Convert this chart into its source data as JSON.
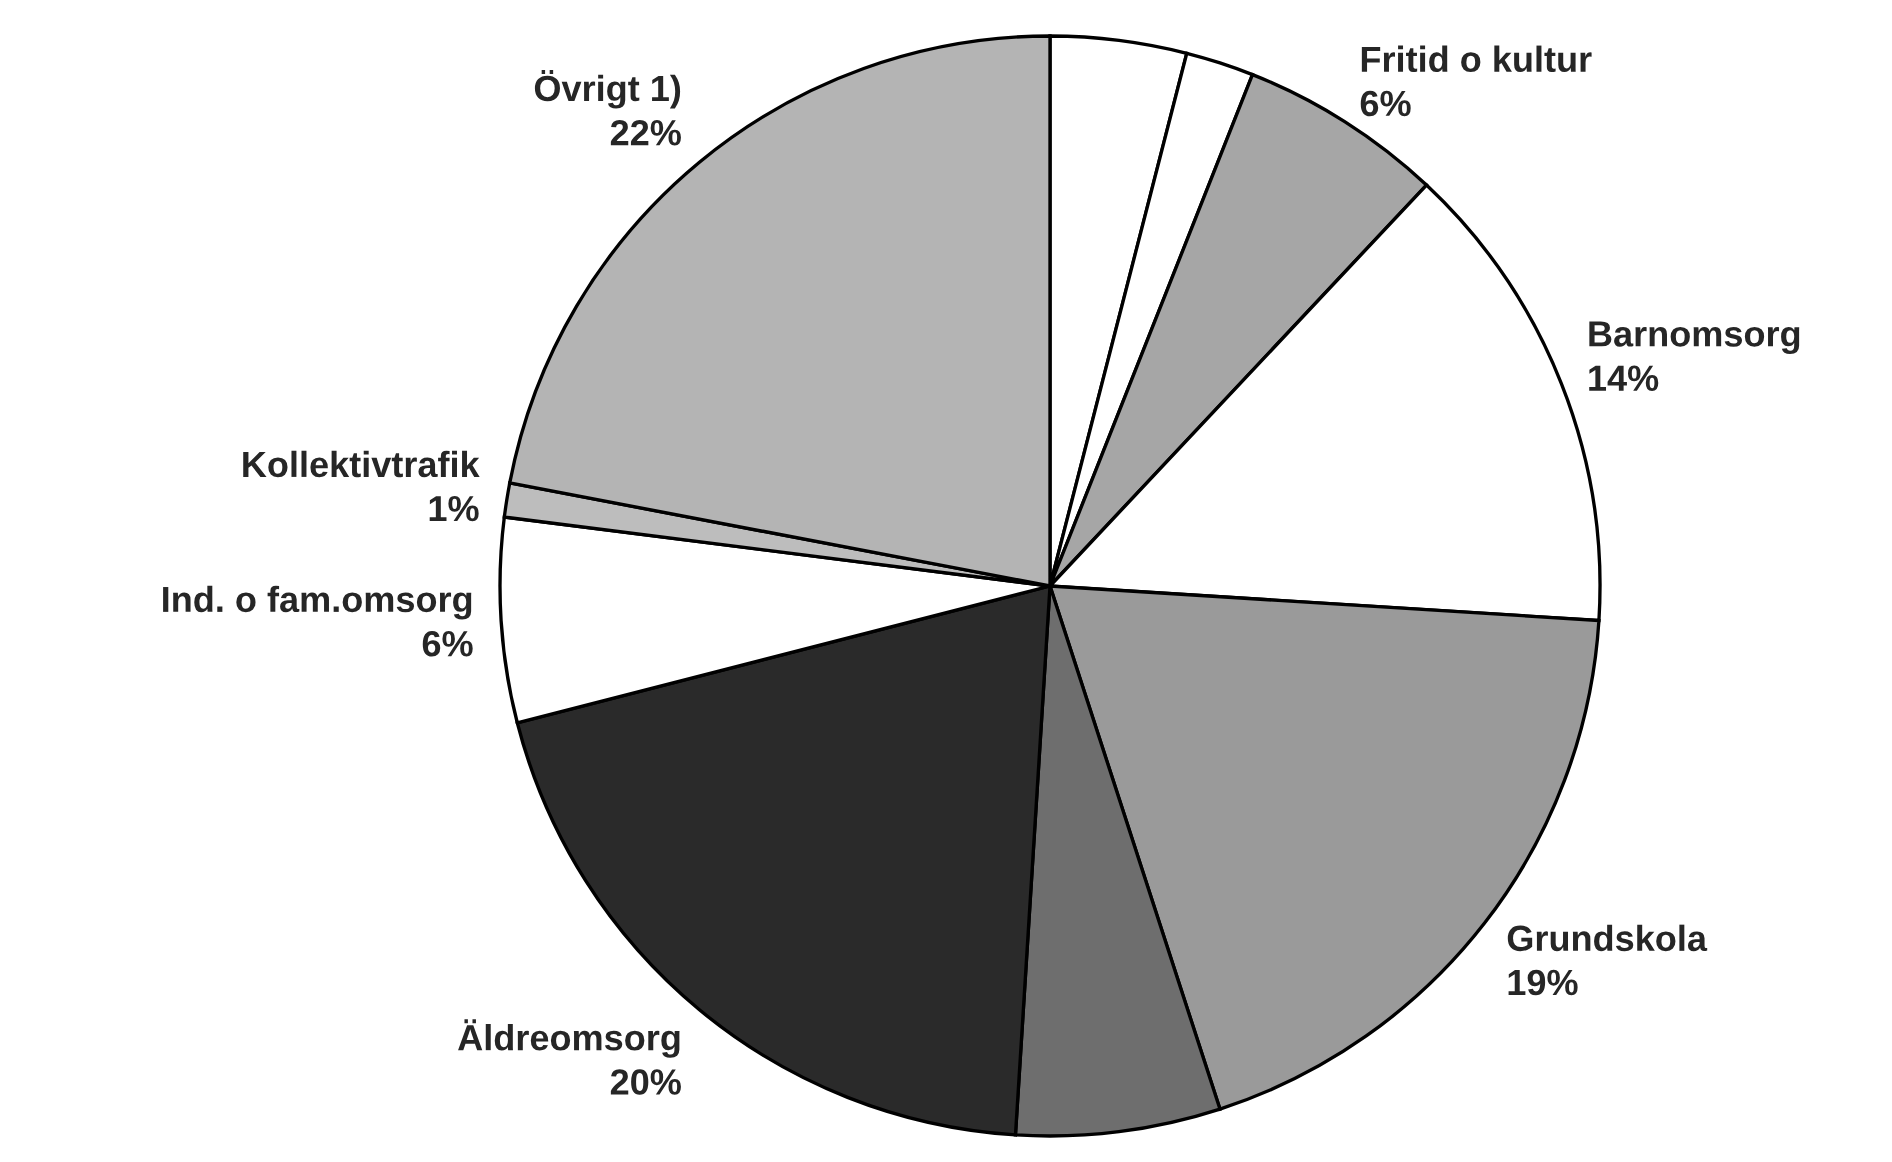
{
  "chart_data": {
    "type": "pie",
    "categories": [
      null,
      null,
      "Fritid o kultur",
      "Barnomsorg",
      "Grundskola",
      null,
      "Äldreomsorg",
      "Ind. o fam.omsorg",
      "Kollektivtrafik",
      "Övrigt 1)"
    ],
    "values": [
      4,
      2,
      6,
      14,
      19,
      6,
      20,
      6,
      1,
      22
    ],
    "value_labels": [
      null,
      null,
      "6%",
      "14%",
      "19%",
      null,
      "20%",
      "6%",
      "1%",
      "22%"
    ],
    "colors": [
      "#ffffff",
      "#ffffff",
      "#a6a6a6",
      "#ffffff",
      "#9a9a9a",
      "#6e6e6e",
      "#2a2a2a",
      "#ffffff",
      "#bdbdbd",
      "#b4b4b4"
    ]
  }
}
